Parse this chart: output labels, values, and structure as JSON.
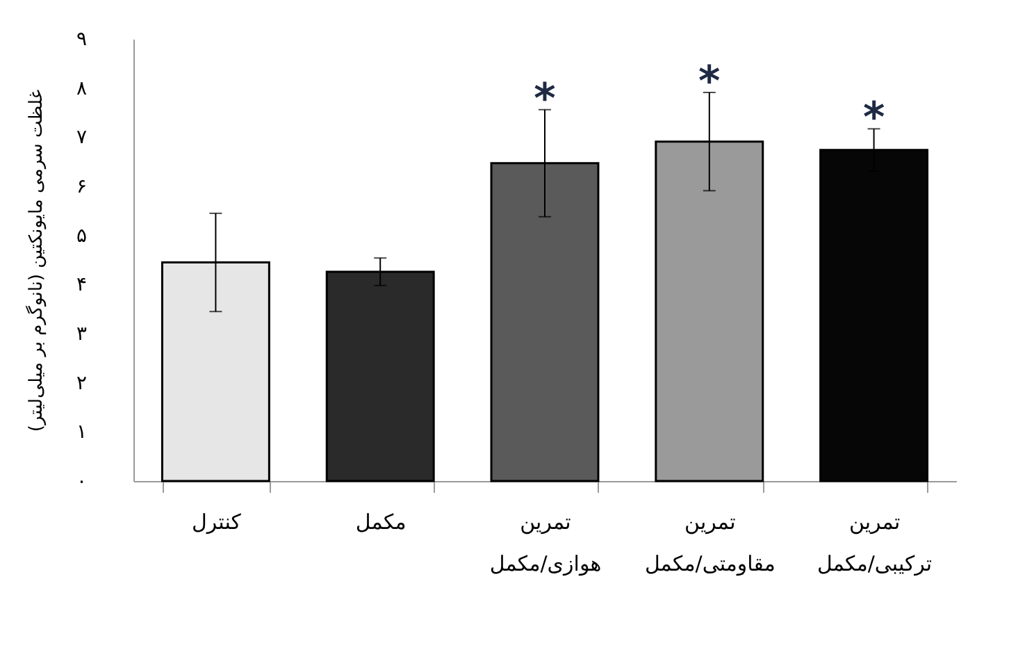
{
  "chart_data": {
    "type": "bar",
    "ylabel": "غلظت سرمی مایونکتین (نانوگرم بر میلی‌لیتر)",
    "categories": [
      "کنترل",
      "مکمل",
      "تمرین\nهوازی/مکمل",
      "تمرین\nمقاومتی/مکمل",
      "تمرین\nترکیبی/مکمل"
    ],
    "values": [
      4.45,
      4.26,
      6.47,
      6.91,
      6.74
    ],
    "errors": [
      1.0,
      0.28,
      1.09,
      1.0,
      0.43
    ],
    "colors": [
      "#e6e6e6",
      "#2a2a2a",
      "#5a5a5a",
      "#9a9a9a",
      "#060606"
    ],
    "ylim": [
      0,
      9
    ],
    "yticks": [
      {
        "value": 0,
        "label": "۰"
      },
      {
        "value": 1,
        "label": "۱"
      },
      {
        "value": 2,
        "label": "۲"
      },
      {
        "value": 3,
        "label": "۳"
      },
      {
        "value": 4,
        "label": "۴"
      },
      {
        "value": 5,
        "label": "۵"
      },
      {
        "value": 6,
        "label": "۶"
      },
      {
        "value": 7,
        "label": "۷"
      },
      {
        "value": 8,
        "label": "۸"
      },
      {
        "value": 9,
        "label": "۹"
      }
    ],
    "grid": false,
    "annotations": [
      "*",
      "*",
      "*"
    ]
  }
}
